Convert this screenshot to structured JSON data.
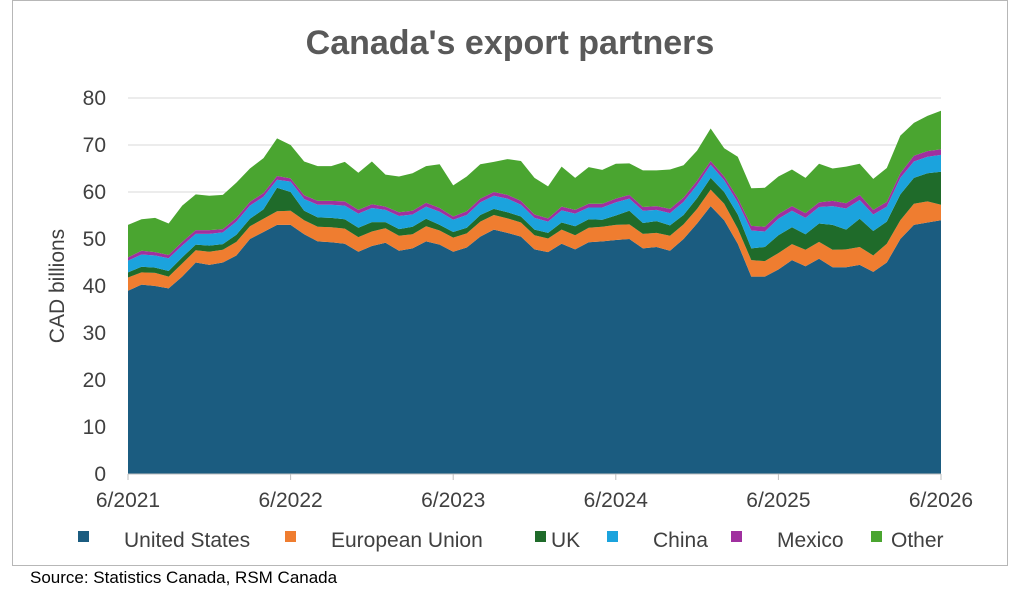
{
  "chart_data": {
    "type": "area",
    "stacked": true,
    "title": "Canada's export partners",
    "ylabel": "CAD billions",
    "xlabel": "",
    "ylim": [
      0,
      80
    ],
    "yticks": [
      0,
      10,
      20,
      30,
      40,
      50,
      60,
      70,
      80
    ],
    "grid": true,
    "legend_position": "bottom",
    "x_tick_labels": [
      "6/2021",
      "6/2022",
      "6/2023",
      "6/2024",
      "6/2025",
      "6/2026"
    ],
    "x": [
      "6/2021",
      "7/2021",
      "8/2021",
      "9/2021",
      "10/2021",
      "11/2021",
      "12/2021",
      "1/2022",
      "2/2022",
      "3/2022",
      "4/2022",
      "5/2022",
      "6/2022",
      "7/2022",
      "8/2022",
      "9/2022",
      "10/2022",
      "11/2022",
      "12/2022",
      "1/2023",
      "2/2023",
      "3/2023",
      "4/2023",
      "5/2023",
      "6/2023",
      "7/2023",
      "8/2023",
      "9/2023",
      "10/2023",
      "11/2023",
      "12/2023",
      "1/2024",
      "2/2024",
      "3/2024",
      "4/2024",
      "5/2024",
      "6/2024",
      "7/2024",
      "8/2024",
      "9/2024",
      "10/2024",
      "11/2024",
      "12/2024",
      "1/2025",
      "2/2025",
      "3/2025",
      "4/2025",
      "5/2025",
      "6/2025",
      "7/2025",
      "8/2025",
      "9/2025",
      "10/2025",
      "11/2025",
      "12/2025",
      "1/2026",
      "2/2026",
      "3/2026",
      "4/2026",
      "5/2026",
      "6/2026"
    ],
    "series": [
      {
        "name": "United States",
        "color": "#1b5c80",
        "values": [
          39,
          40.3,
          40,
          39.5,
          42,
          45,
          44.5,
          45,
          46.5,
          50,
          51.5,
          53,
          53,
          51,
          49.5,
          49.3,
          49,
          47.3,
          48.5,
          49.2,
          47.5,
          48,
          49.5,
          48.8,
          47.3,
          48.2,
          50.5,
          52,
          51.3,
          50.5,
          47.8,
          47.2,
          49,
          47.8,
          49.3,
          49.5,
          49.8,
          50,
          48,
          48.3,
          47.5,
          50,
          53.3,
          57,
          54,
          49,
          42,
          42,
          43.5,
          45.5,
          44.2,
          45.8,
          44,
          44,
          44.5,
          43,
          45,
          50,
          53,
          53.5,
          54
        ]
      },
      {
        "name": "European Union",
        "color": "#ef7d30",
        "values": [
          2.8,
          2.6,
          2.8,
          2.5,
          2.8,
          2.6,
          2.8,
          2.7,
          2.9,
          2.7,
          2.8,
          2.9,
          3,
          3,
          3.1,
          3.2,
          3.2,
          3.1,
          3.1,
          3.1,
          3.2,
          3,
          3.2,
          3,
          3,
          3,
          3.2,
          3.1,
          3.1,
          3,
          3,
          2.9,
          3,
          3,
          3.1,
          3.1,
          3.2,
          3.1,
          3.1,
          3,
          3.2,
          3.1,
          3.1,
          3.5,
          3.5,
          3.2,
          3.5,
          3.3,
          3.5,
          3.4,
          3.5,
          3.6,
          3.7,
          3.8,
          3.8,
          3.5,
          4,
          4,
          4.5,
          4.5,
          3.3
        ]
      },
      {
        "name": "UK",
        "color": "#1f6b2a",
        "values": [
          1.1,
          1.2,
          1.1,
          1.2,
          1.3,
          1.2,
          1.3,
          1.2,
          1.5,
          1.6,
          2,
          5,
          4,
          2,
          2,
          2,
          2,
          2,
          2,
          1.3,
          1.4,
          1.6,
          1.6,
          1.2,
          1.2,
          1.2,
          1.4,
          1.3,
          1.3,
          1.3,
          1.2,
          1.2,
          1.5,
          1.9,
          1.8,
          1.5,
          2,
          2.9,
          2.3,
          2.5,
          2.2,
          2,
          2.3,
          2.5,
          2.5,
          3,
          2.5,
          3,
          3.8,
          3.6,
          3.3,
          3.9,
          5.3,
          4.2,
          6,
          5.2,
          4.7,
          5.5,
          5.5,
          6,
          7
        ]
      },
      {
        "name": "China",
        "color": "#1ba3dd",
        "values": [
          2.5,
          2.6,
          2.6,
          2.7,
          2.5,
          2.3,
          2.5,
          2.5,
          2.8,
          2.8,
          2.7,
          1.7,
          2.2,
          2.5,
          2.7,
          2.8,
          2.9,
          3,
          3,
          2.6,
          2.8,
          2.6,
          2.6,
          2.8,
          2.6,
          2.7,
          2.7,
          2.8,
          2.9,
          2.5,
          2.5,
          2.4,
          2.6,
          2.7,
          2.5,
          2.6,
          2.8,
          2.6,
          2.6,
          2.4,
          2.6,
          2.8,
          2.8,
          2.8,
          2.5,
          2.6,
          3.8,
          3.3,
          3.5,
          3.5,
          3.5,
          3.5,
          4,
          4.5,
          4,
          3.5,
          3.2,
          3.5,
          3.5,
          3.5,
          3.6
        ]
      },
      {
        "name": "Mexico",
        "color": "#a0309f",
        "values": [
          0.7,
          0.8,
          0.7,
          0.7,
          0.8,
          0.8,
          0.8,
          0.7,
          0.8,
          0.8,
          0.8,
          0.8,
          0.7,
          0.8,
          0.8,
          0.8,
          0.9,
          0.8,
          0.8,
          0.7,
          0.8,
          0.8,
          0.8,
          0.8,
          0.7,
          0.8,
          0.8,
          0.8,
          0.8,
          0.8,
          0.7,
          0.7,
          0.8,
          0.8,
          0.8,
          0.8,
          0.8,
          0.8,
          0.8,
          0.8,
          0.9,
          0.9,
          0.9,
          0.8,
          0.8,
          0.9,
          1,
          1,
          1,
          1,
          1,
          1,
          1.1,
          1.1,
          1.1,
          1,
          1,
          1,
          1.2,
          1.2,
          1.2
        ]
      },
      {
        "name": "Other",
        "color": "#4aa530",
        "values": [
          6.9,
          6.7,
          7.3,
          6.7,
          7.7,
          7.6,
          7.3,
          7.3,
          7.5,
          7.1,
          7.4,
          8,
          7.1,
          7.2,
          7.4,
          7.4,
          8.4,
          7.9,
          9.1,
          6.8,
          7.6,
          8,
          7.8,
          9.3,
          6.6,
          7.4,
          7.3,
          6.4,
          7.6,
          8.5,
          7.8,
          6.8,
          8.5,
          6.8,
          7.8,
          7.2,
          7.4,
          6.7,
          7.8,
          7.6,
          8.4,
          6.9,
          6.4,
          6.9,
          6,
          8.8,
          8,
          8.3,
          8,
          7.8,
          7.5,
          8.2,
          6.9,
          7.8,
          6.6,
          6.6,
          7.2,
          8,
          7,
          7.5,
          8.2
        ]
      }
    ]
  },
  "source": "Source: Statistics Canada, RSM Canada"
}
